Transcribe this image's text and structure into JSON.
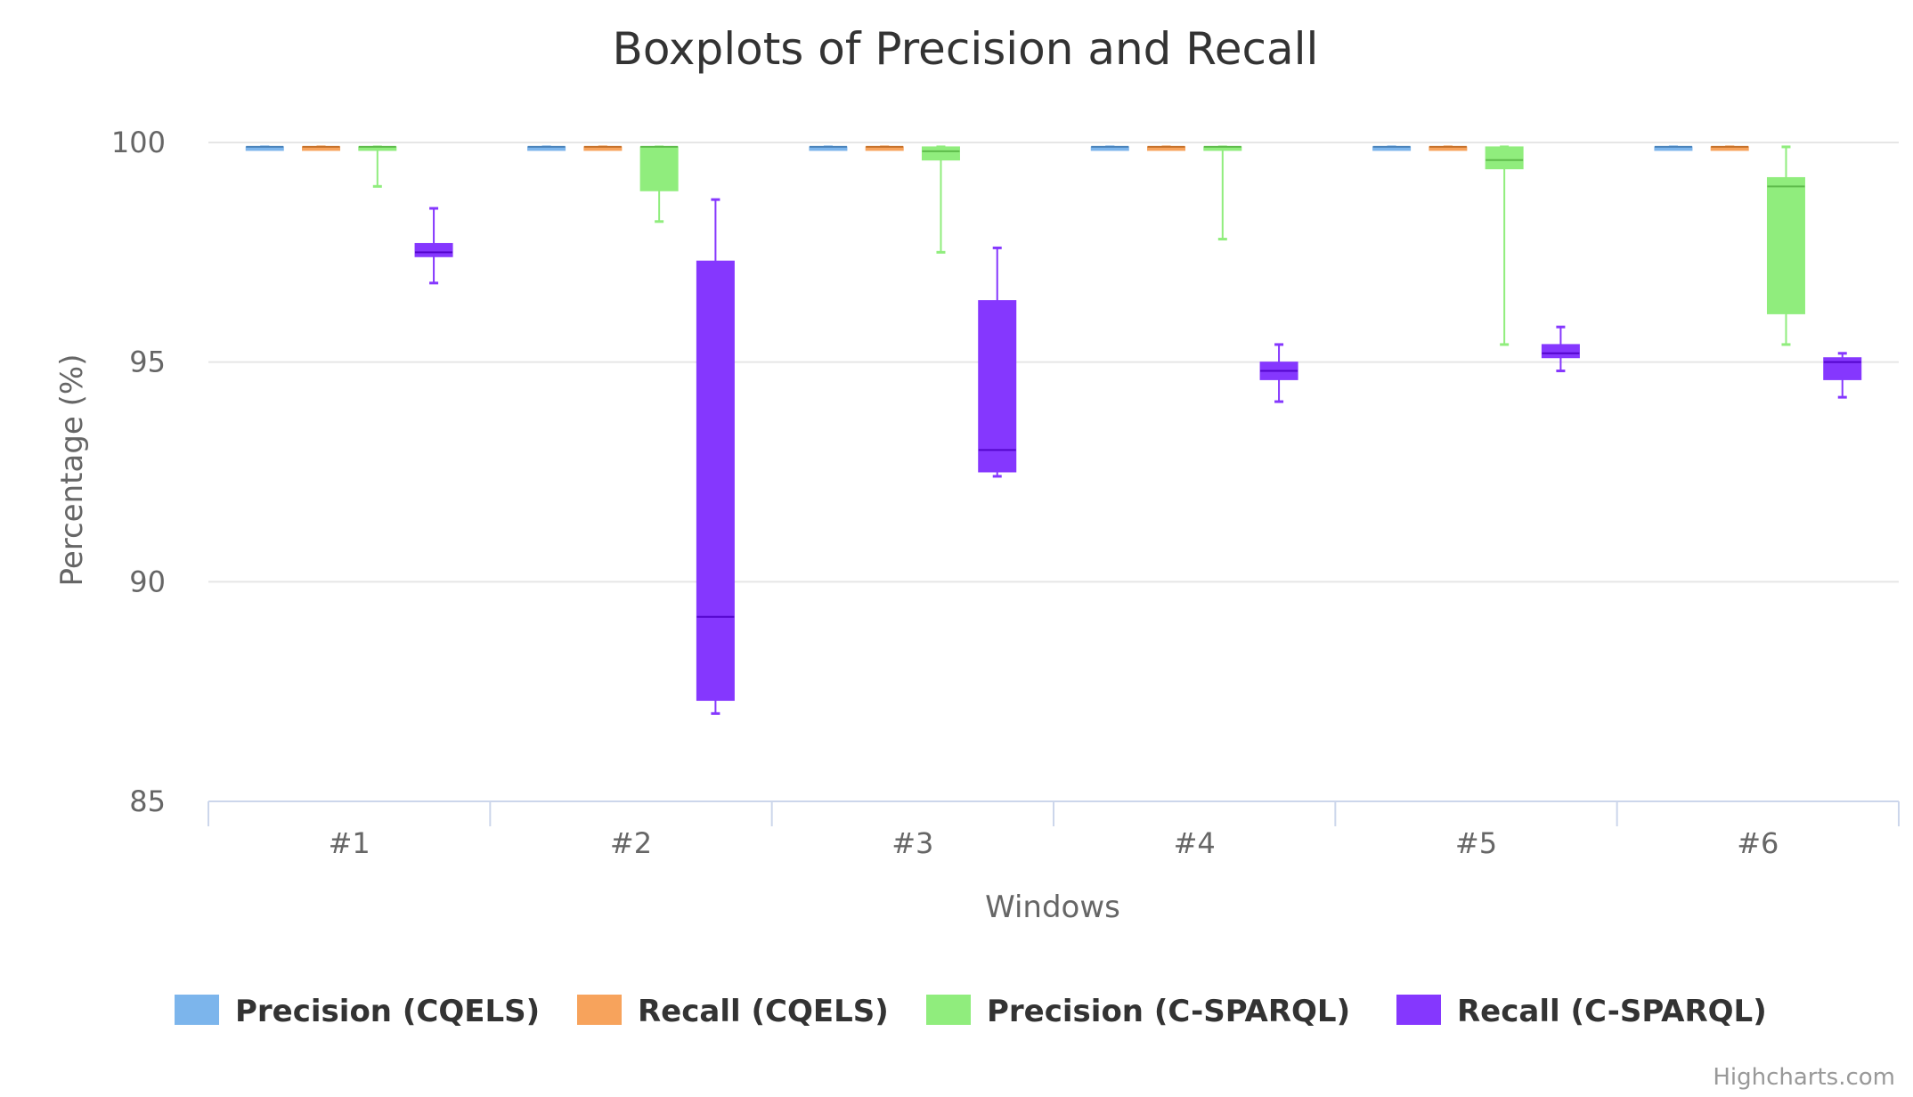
{
  "chart_data": {
    "type": "boxplot",
    "title": "Boxplots of Precision and Recall",
    "xlabel": "Windows",
    "ylabel": "Percentage (%)",
    "categories": [
      "#1",
      "#2",
      "#3",
      "#4",
      "#5",
      "#6"
    ],
    "ylim": [
      85,
      100
    ],
    "yticks": [
      85,
      90,
      95,
      100
    ],
    "grid": true,
    "legend": "bottom",
    "series": [
      {
        "name": "Precision (CQELS)",
        "color": "#7cb5ec",
        "boxes": [
          {
            "low": 99.9,
            "q1": 99.9,
            "median": 99.9,
            "q3": 99.9,
            "high": 99.9
          },
          {
            "low": 99.9,
            "q1": 99.9,
            "median": 99.9,
            "q3": 99.9,
            "high": 99.9
          },
          {
            "low": 99.9,
            "q1": 99.9,
            "median": 99.9,
            "q3": 99.9,
            "high": 99.9
          },
          {
            "low": 99.9,
            "q1": 99.9,
            "median": 99.9,
            "q3": 99.9,
            "high": 99.9
          },
          {
            "low": 99.9,
            "q1": 99.9,
            "median": 99.9,
            "q3": 99.9,
            "high": 99.9
          },
          {
            "low": 99.9,
            "q1": 99.9,
            "median": 99.9,
            "q3": 99.9,
            "high": 99.9
          }
        ]
      },
      {
        "name": "Recall (CQELS)",
        "color": "#f7a35c",
        "boxes": [
          {
            "low": 99.9,
            "q1": 99.9,
            "median": 99.9,
            "q3": 99.9,
            "high": 99.9
          },
          {
            "low": 99.9,
            "q1": 99.9,
            "median": 99.9,
            "q3": 99.9,
            "high": 99.9
          },
          {
            "low": 99.9,
            "q1": 99.9,
            "median": 99.9,
            "q3": 99.9,
            "high": 99.9
          },
          {
            "low": 99.9,
            "q1": 99.9,
            "median": 99.9,
            "q3": 99.9,
            "high": 99.9
          },
          {
            "low": 99.9,
            "q1": 99.9,
            "median": 99.9,
            "q3": 99.9,
            "high": 99.9
          },
          {
            "low": 99.9,
            "q1": 99.9,
            "median": 99.9,
            "q3": 99.9,
            "high": 99.9
          }
        ]
      },
      {
        "name": "Precision (C-SPARQL)",
        "color": "#90ed7d",
        "boxes": [
          {
            "low": 99.0,
            "q1": 99.85,
            "median": 99.9,
            "q3": 99.9,
            "high": 99.9
          },
          {
            "low": 98.2,
            "q1": 98.9,
            "median": 99.9,
            "q3": 99.9,
            "high": 99.9
          },
          {
            "low": 97.5,
            "q1": 99.6,
            "median": 99.8,
            "q3": 99.9,
            "high": 99.9
          },
          {
            "low": 97.8,
            "q1": 99.85,
            "median": 99.9,
            "q3": 99.9,
            "high": 99.9
          },
          {
            "low": 95.4,
            "q1": 99.4,
            "median": 99.6,
            "q3": 99.9,
            "high": 99.9
          },
          {
            "low": 95.4,
            "q1": 96.1,
            "median": 99.0,
            "q3": 99.2,
            "high": 99.9
          }
        ]
      },
      {
        "name": "Recall (C-SPARQL)",
        "color": "#8537fe",
        "boxes": [
          {
            "low": 96.8,
            "q1": 97.4,
            "median": 97.5,
            "q3": 97.7,
            "high": 98.5
          },
          {
            "low": 87.0,
            "q1": 87.3,
            "median": 89.2,
            "q3": 97.3,
            "high": 98.7
          },
          {
            "low": 92.4,
            "q1": 92.5,
            "median": 93.0,
            "q3": 96.4,
            "high": 97.6
          },
          {
            "low": 94.1,
            "q1": 94.6,
            "median": 94.8,
            "q3": 95.0,
            "high": 95.4
          },
          {
            "low": 94.8,
            "q1": 95.1,
            "median": 95.2,
            "q3": 95.4,
            "high": 95.8
          },
          {
            "low": 94.2,
            "q1": 94.6,
            "median": 95.0,
            "q3": 95.1,
            "high": 95.2
          }
        ]
      }
    ]
  },
  "credits": "Highcharts.com"
}
